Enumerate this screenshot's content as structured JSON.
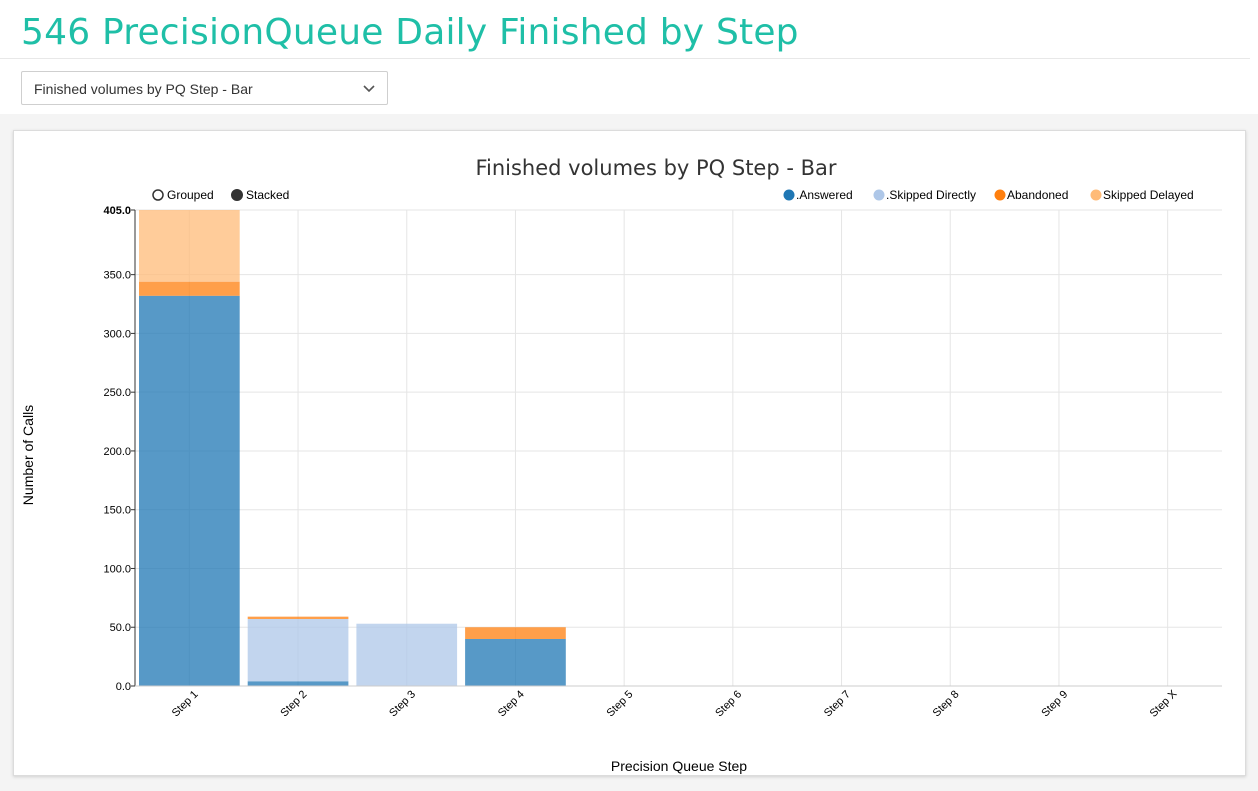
{
  "page": {
    "title": "546 PrecisionQueue Daily Finished by Step",
    "view_select": {
      "selected": "Finished volumes by PQ Step - Bar",
      "icon": "chevron-down-icon"
    }
  },
  "controls": {
    "grouped_label": "Grouped",
    "stacked_label": "Stacked",
    "selected": "Stacked"
  },
  "chart_data": {
    "type": "bar",
    "stacked": true,
    "title": "Finished volumes by PQ Step - Bar",
    "xlabel": "Precision Queue Step",
    "ylabel": "Number of Calls",
    "categories": [
      "Step 1",
      "Step 2",
      "Step 3",
      "Step 4",
      "Step 5",
      "Step 6",
      "Step 7",
      "Step 8",
      "Step 9",
      "Step X"
    ],
    "ylim": [
      0,
      405
    ],
    "yticks": [
      "0.0",
      "50.0",
      "100.0",
      "150.0",
      "200.0",
      "250.0",
      "300.0",
      "350.0",
      "405.0"
    ],
    "grid": true,
    "legend_position": "top-right",
    "series": [
      {
        "name": ".Answered",
        "color": "#1f77b4",
        "values": [
          332,
          4,
          0,
          40,
          0,
          0,
          0,
          0,
          0,
          0
        ]
      },
      {
        "name": ".Skipped Directly",
        "color": "#aec7e8",
        "values": [
          0,
          53,
          53,
          0,
          0,
          0,
          0,
          0,
          0,
          0
        ]
      },
      {
        "name": "Abandoned",
        "color": "#ff7f0e",
        "values": [
          12,
          2,
          0,
          10,
          0,
          0,
          0,
          0,
          0,
          0
        ]
      },
      {
        "name": "Skipped Delayed",
        "color": "#ffbb78",
        "values": [
          61,
          0,
          0,
          0,
          0,
          0,
          0,
          0,
          0,
          0
        ]
      }
    ]
  }
}
